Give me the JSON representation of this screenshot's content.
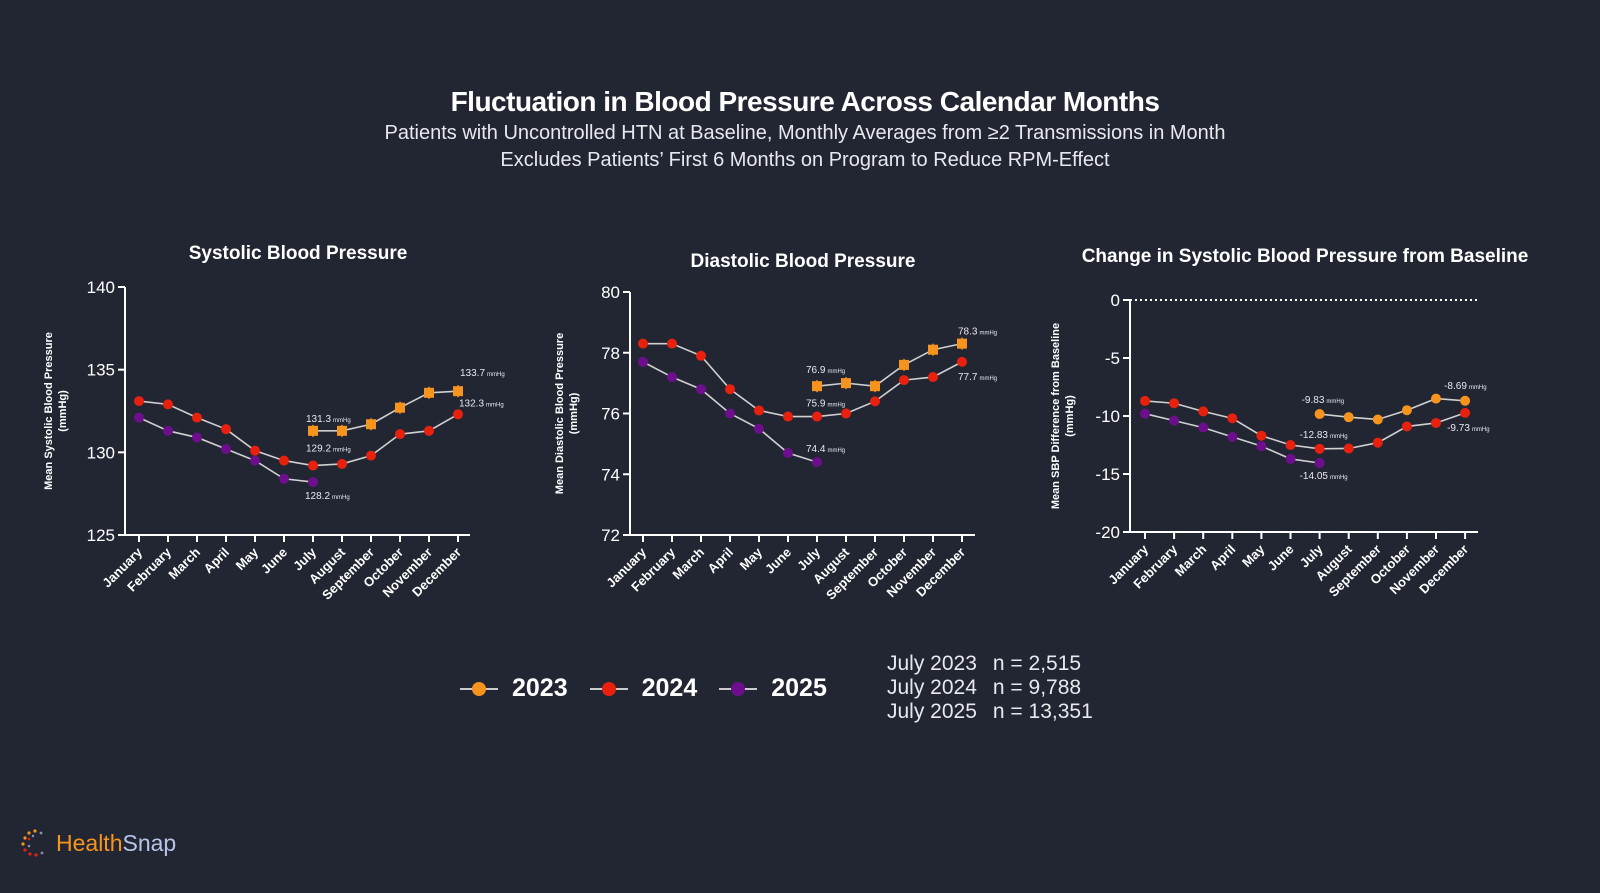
{
  "header": {
    "title": "Fluctuation in Blood Pressure Across Calendar Months",
    "subtitle1": "Patients with Uncontrolled HTN at Baseline, Monthly Averages from  ≥2 Transmissions in Month",
    "subtitle2": "Excludes Patients’ First 6 Months on Program to Reduce RPM-Effect"
  },
  "colors": {
    "2023": "#f7941d",
    "2024": "#e8210e",
    "2025": "#6d0f8c",
    "background": "#222633"
  },
  "legend": [
    {
      "label": "2023",
      "color": "#f7941d"
    },
    {
      "label": "2024",
      "color": "#e8210e"
    },
    {
      "label": "2025",
      "color": "#6d0f8c"
    }
  ],
  "sample_sizes": [
    {
      "label": "July 2023",
      "n": "n = 2,515"
    },
    {
      "label": "July 2024",
      "n": "n = 9,788"
    },
    {
      "label": "July 2025",
      "n": "n = 13,351"
    }
  ],
  "logo": {
    "part1": "Health",
    "part2": "Snap"
  },
  "chart_data": [
    {
      "type": "line",
      "title": "Systolic Blood Pressure",
      "ylabel": "Mean Systolic Blood Pressure (mmHg)",
      "ylabel_lines": [
        "Mean Systolic Blood Pressure",
        "(mmHg)"
      ],
      "xlabel": "",
      "ylim": [
        125,
        140
      ],
      "yticks": [
        125,
        130,
        135,
        140
      ],
      "categories": [
        "January",
        "February",
        "March",
        "April",
        "May",
        "June",
        "July",
        "August",
        "September",
        "October",
        "November",
        "December"
      ],
      "series": [
        {
          "name": "2023",
          "values": [
            null,
            null,
            null,
            null,
            null,
            null,
            131.3,
            131.3,
            131.7,
            132.7,
            133.6,
            133.7
          ]
        },
        {
          "name": "2024",
          "values": [
            133.1,
            132.9,
            132.1,
            131.4,
            130.1,
            129.5,
            129.2,
            129.3,
            129.8,
            131.1,
            131.3,
            132.3
          ]
        },
        {
          "name": "2025",
          "values": [
            132.1,
            131.3,
            130.9,
            130.2,
            129.5,
            128.4,
            128.2,
            null,
            null,
            null,
            null,
            null
          ]
        }
      ],
      "annotations": [
        {
          "series": "2023",
          "month": "July",
          "text": "131.3",
          "unit": "mmHg"
        },
        {
          "series": "2024",
          "month": "July",
          "text": "129.2",
          "unit": "mmHg"
        },
        {
          "series": "2025",
          "month": "July",
          "text": "128.2",
          "unit": "mmHg"
        },
        {
          "series": "2023",
          "month": "December",
          "text": "133.7",
          "unit": "mmHg"
        },
        {
          "series": "2024",
          "month": "December",
          "text": "132.3",
          "unit": "mmHg"
        }
      ],
      "reference_line": null
    },
    {
      "type": "line",
      "title": "Diastolic Blood Pressure",
      "ylabel": "Mean Diastolic Blood Pressure (mmHg)",
      "ylabel_lines": [
        "Mean Diastolic Blood Pressure",
        "(mmHg)"
      ],
      "xlabel": "",
      "ylim": [
        72,
        80
      ],
      "yticks": [
        72,
        74,
        76,
        78,
        80
      ],
      "categories": [
        "January",
        "February",
        "March",
        "April",
        "May",
        "June",
        "July",
        "August",
        "September",
        "October",
        "November",
        "December"
      ],
      "series": [
        {
          "name": "2023",
          "values": [
            null,
            null,
            null,
            null,
            null,
            null,
            76.9,
            77.0,
            76.9,
            77.6,
            78.1,
            78.3
          ]
        },
        {
          "name": "2024",
          "values": [
            78.3,
            78.3,
            77.9,
            76.8,
            76.1,
            75.9,
            75.9,
            76.0,
            76.4,
            77.1,
            77.2,
            77.7
          ]
        },
        {
          "name": "2025",
          "values": [
            77.7,
            77.2,
            76.8,
            76.0,
            75.5,
            74.7,
            74.4,
            null,
            null,
            null,
            null,
            null
          ]
        }
      ],
      "annotations": [
        {
          "series": "2023",
          "month": "July",
          "text": "76.9",
          "unit": "mmHg"
        },
        {
          "series": "2024",
          "month": "July",
          "text": "75.9",
          "unit": "mmHg"
        },
        {
          "series": "2025",
          "month": "July",
          "text": "74.4",
          "unit": "mmHg"
        },
        {
          "series": "2023",
          "month": "December",
          "text": "78.3",
          "unit": "mmHg"
        },
        {
          "series": "2024",
          "month": "December",
          "text": "77.7",
          "unit": "mmHg"
        }
      ],
      "reference_line": null
    },
    {
      "type": "line",
      "title": "Change in Systolic Blood Pressure from Baseline",
      "ylabel": "Mean SBP Difference from Baseline (mmHg)",
      "ylabel_lines": [
        "Mean SBP Difference from Baseline",
        "(mmHg)"
      ],
      "xlabel": "",
      "ylim": [
        -20,
        0
      ],
      "yticks": [
        -20,
        -15,
        -10,
        -5,
        0
      ],
      "categories": [
        "January",
        "February",
        "March",
        "April",
        "May",
        "June",
        "July",
        "August",
        "September",
        "October",
        "November",
        "December"
      ],
      "series": [
        {
          "name": "2023",
          "values": [
            null,
            null,
            null,
            null,
            null,
            null,
            -9.83,
            -10.1,
            -10.3,
            -9.5,
            -8.5,
            -8.69
          ]
        },
        {
          "name": "2024",
          "values": [
            -8.7,
            -8.9,
            -9.6,
            -10.2,
            -11.7,
            -12.5,
            -12.83,
            -12.8,
            -12.3,
            -10.9,
            -10.6,
            -9.73
          ]
        },
        {
          "name": "2025",
          "values": [
            -9.8,
            -10.4,
            -11.0,
            -11.8,
            -12.6,
            -13.7,
            -14.05,
            null,
            null,
            null,
            null,
            null
          ]
        }
      ],
      "annotations": [
        {
          "series": "2023",
          "month": "July",
          "text": "-9.83",
          "unit": "mmHg"
        },
        {
          "series": "2024",
          "month": "July",
          "text": "-12.83",
          "unit": "mmHg"
        },
        {
          "series": "2025",
          "month": "July",
          "text": "-14.05",
          "unit": "mmHg"
        },
        {
          "series": "2023",
          "month": "December",
          "text": "-8.69",
          "unit": "mmHg"
        },
        {
          "series": "2024",
          "month": "December",
          "text": "-9.73",
          "unit": "mmHg"
        }
      ],
      "reference_line": 0
    }
  ]
}
